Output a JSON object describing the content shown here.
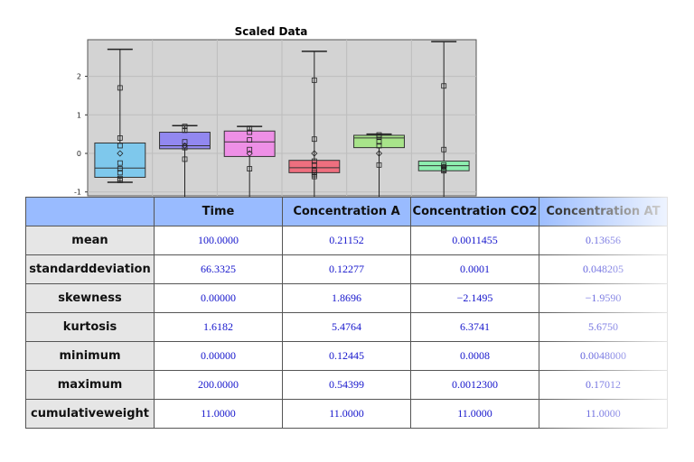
{
  "chart_data": {
    "type": "box",
    "title": "Scaled Data",
    "ylim": [
      -1.1,
      2.95
    ],
    "yticks": [
      -1,
      0,
      1,
      2
    ],
    "grid": true,
    "series": [
      {
        "color": "#7ec8ec",
        "q1": -0.62,
        "median": -0.38,
        "q3": 0.27,
        "whisker_low": -0.75,
        "whisker_high": 2.7,
        "mean": 0.0,
        "points": [
          1.7,
          0.4,
          0.2,
          -0.25,
          -0.4,
          -0.5,
          -0.65,
          -0.7
        ]
      },
      {
        "color": "#9288f0",
        "q1": 0.12,
        "median": 0.2,
        "q3": 0.55,
        "whisker_low": -1.2,
        "whisker_high": 0.72,
        "mean": 0.2,
        "points": [
          0.7,
          0.6,
          0.3,
          0.15,
          -0.15
        ]
      },
      {
        "color": "#ee8fe6",
        "q1": -0.08,
        "median": 0.3,
        "q3": 0.58,
        "whisker_low": -1.2,
        "whisker_high": 0.7,
        "mean": 0.0,
        "points": [
          0.65,
          0.55,
          0.35,
          0.1,
          -0.4
        ]
      },
      {
        "color": "#ee6f7f",
        "q1": -0.5,
        "median": -0.37,
        "q3": -0.18,
        "whisker_low": -1.2,
        "whisker_high": 2.65,
        "mean": 0.0,
        "points": [
          1.9,
          0.37,
          -0.2,
          -0.3,
          -0.45,
          -0.5,
          -0.55,
          -0.6
        ]
      },
      {
        "color": "#a8e48a",
        "q1": 0.15,
        "median": 0.4,
        "q3": 0.47,
        "whisker_low": -1.2,
        "whisker_high": 0.5,
        "mean": 0.0,
        "points": [
          0.48,
          0.43,
          0.3,
          0.2,
          -0.3
        ]
      },
      {
        "color": "#8eeeb0",
        "q1": -0.45,
        "median": -0.32,
        "q3": -0.2,
        "whisker_low": -1.2,
        "whisker_high": 2.9,
        "mean": -0.35,
        "points": [
          1.75,
          0.1,
          -0.3,
          -0.35,
          -0.4,
          -0.43,
          -0.45
        ]
      }
    ]
  },
  "table": {
    "headers": [
      "Time",
      "Concentration A",
      "Concentration CO2",
      "Concentration AT"
    ],
    "rows": [
      {
        "label": "mean",
        "values": [
          "100.0000",
          "0.21152",
          "0.0011455",
          "0.13656"
        ]
      },
      {
        "label": "standarddeviation",
        "values": [
          "66.3325",
          "0.12277",
          "0.0001",
          "0.048205"
        ]
      },
      {
        "label": "skewness",
        "values": [
          "0.00000",
          "1.8696",
          "−2.1495",
          "−1.9590"
        ]
      },
      {
        "label": "kurtosis",
        "values": [
          "1.6182",
          "5.4764",
          "6.3741",
          "5.6750"
        ]
      },
      {
        "label": "minimum",
        "values": [
          "0.00000",
          "0.12445",
          "0.0008",
          "0.0048000"
        ]
      },
      {
        "label": "maximum",
        "values": [
          "200.0000",
          "0.54399",
          "0.0012300",
          "0.17012"
        ]
      },
      {
        "label": "cumulativeweight",
        "values": [
          "11.0000",
          "11.0000",
          "11.0000",
          "11.0000"
        ]
      }
    ]
  }
}
